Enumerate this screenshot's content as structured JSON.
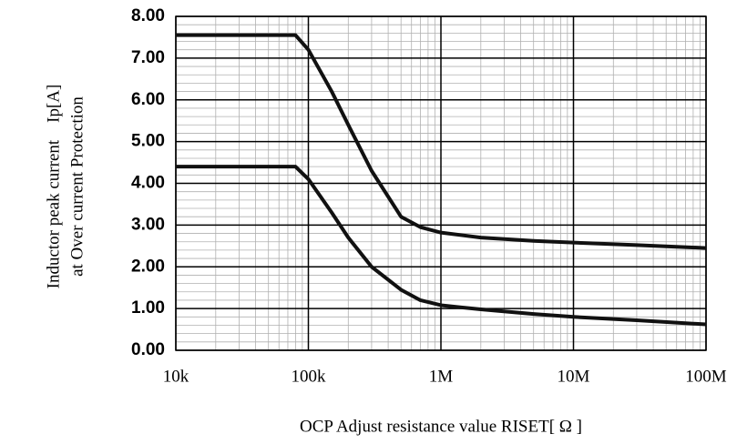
{
  "chart_data": {
    "type": "line",
    "xlog": true,
    "grid": true,
    "minor_grid": true,
    "xlabel": "OCP Adjust resistance value RISET[ Ω ]",
    "ylabel": [
      "Inductor peak current　Ip[A]",
      "at Over current Protection"
    ],
    "x": [
      10000,
      80000,
      100000,
      150000,
      200000,
      300000,
      500000,
      700000,
      1000000,
      2000000,
      5000000,
      10000000,
      30000000,
      100000000
    ],
    "series": [
      {
        "color": "#111111",
        "values": [
          7.55,
          7.55,
          7.2,
          6.2,
          5.4,
          4.3,
          3.2,
          2.95,
          2.82,
          2.7,
          2.62,
          2.58,
          2.52,
          2.45
        ]
      },
      {
        "color": "#111111",
        "values": [
          4.4,
          4.4,
          4.1,
          3.3,
          2.7,
          2.0,
          1.45,
          1.2,
          1.08,
          0.98,
          0.87,
          0.8,
          0.72,
          0.62
        ]
      }
    ],
    "xlim": [
      10000,
      100000000
    ],
    "xticks": [
      {
        "value": 10000,
        "label": "10k"
      },
      {
        "value": 100000,
        "label": "100k"
      },
      {
        "value": 1000000,
        "label": "1M"
      },
      {
        "value": 10000000,
        "label": "10M"
      },
      {
        "value": 100000000,
        "label": "100M"
      }
    ],
    "ylim": [
      0,
      8
    ],
    "yticks": [
      {
        "value": 0,
        "label": "0.00"
      },
      {
        "value": 1,
        "label": "1.00"
      },
      {
        "value": 2,
        "label": "2.00"
      },
      {
        "value": 3,
        "label": "3.00"
      },
      {
        "value": 4,
        "label": "4.00"
      },
      {
        "value": 5,
        "label": "5.00"
      },
      {
        "value": 6,
        "label": "6.00"
      },
      {
        "value": 7,
        "label": "7.00"
      },
      {
        "value": 8,
        "label": "8.00"
      }
    ]
  }
}
